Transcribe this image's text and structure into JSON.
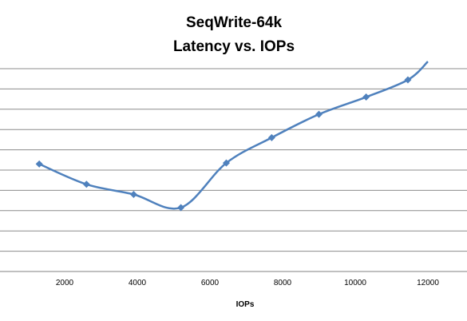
{
  "chart_data": {
    "type": "line",
    "title": "SeqWrite-64k",
    "subtitle": "Latency vs. IOPs",
    "xlabel": "IOPs",
    "ylabel": "",
    "x_ticks": [
      "2000",
      "4000",
      "6000",
      "8000",
      "10000",
      "12000"
    ],
    "xlim": [
      0,
      12000
    ],
    "grid": true,
    "legend": "none",
    "series": [
      {
        "color": "#4f81bd",
        "marker": "diamond",
        "smooth": true,
        "x": [
          1300,
          2600,
          3900,
          5200,
          6450,
          7700,
          9000,
          10300,
          11450,
          12000
        ],
        "y": [
          5.3,
          4.3,
          3.8,
          3.15,
          5.35,
          6.6,
          7.75,
          8.6,
          9.45,
          10.35
        ],
        "marked": [
          true,
          true,
          true,
          true,
          true,
          true,
          true,
          true,
          true,
          false
        ]
      }
    ]
  }
}
